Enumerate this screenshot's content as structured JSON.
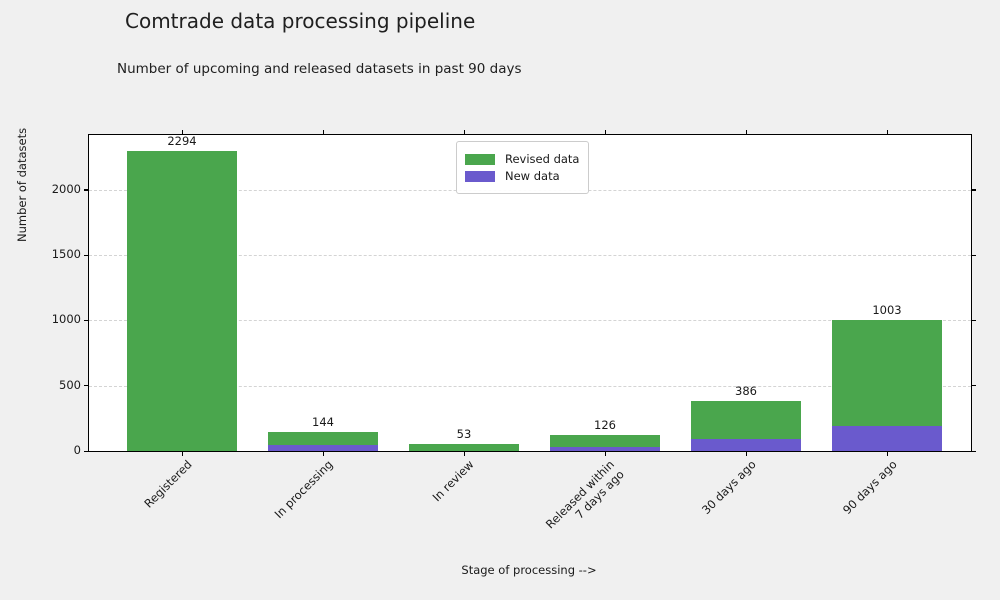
{
  "chart_data": {
    "type": "bar",
    "stacked": true,
    "title": "Comtrade data processing pipeline",
    "subtitle": "Number of upcoming and released datasets in past 90 days",
    "xlabel": "Stage of processing -->",
    "ylabel": "Number of datasets",
    "categories": [
      "Registered",
      "In processing",
      "In review",
      "Released within\n7 days ago",
      "30 days ago",
      "90 days ago"
    ],
    "series": [
      {
        "name": "New data",
        "color": "#6a5acd",
        "values": [
          0,
          45,
          0,
          30,
          95,
          190
        ]
      },
      {
        "name": "Revised data",
        "color": "#4aa64d",
        "values": [
          2294,
          99,
          53,
          96,
          291,
          813
        ]
      }
    ],
    "totals": [
      2294,
      144,
      53,
      126,
      386,
      1003
    ],
    "yticks": [
      0,
      500,
      1000,
      1500,
      2000
    ],
    "ylim": [
      0,
      2420
    ],
    "grid": "horizontal-dashed",
    "legend": {
      "position": "upper center",
      "entries": [
        "Revised data",
        "New data"
      ]
    },
    "colors": {
      "figure_background": "#f0f0f0",
      "plot_background": "#ffffff",
      "revised_data": "#4aa64d",
      "new_data": "#6a5acd"
    }
  }
}
